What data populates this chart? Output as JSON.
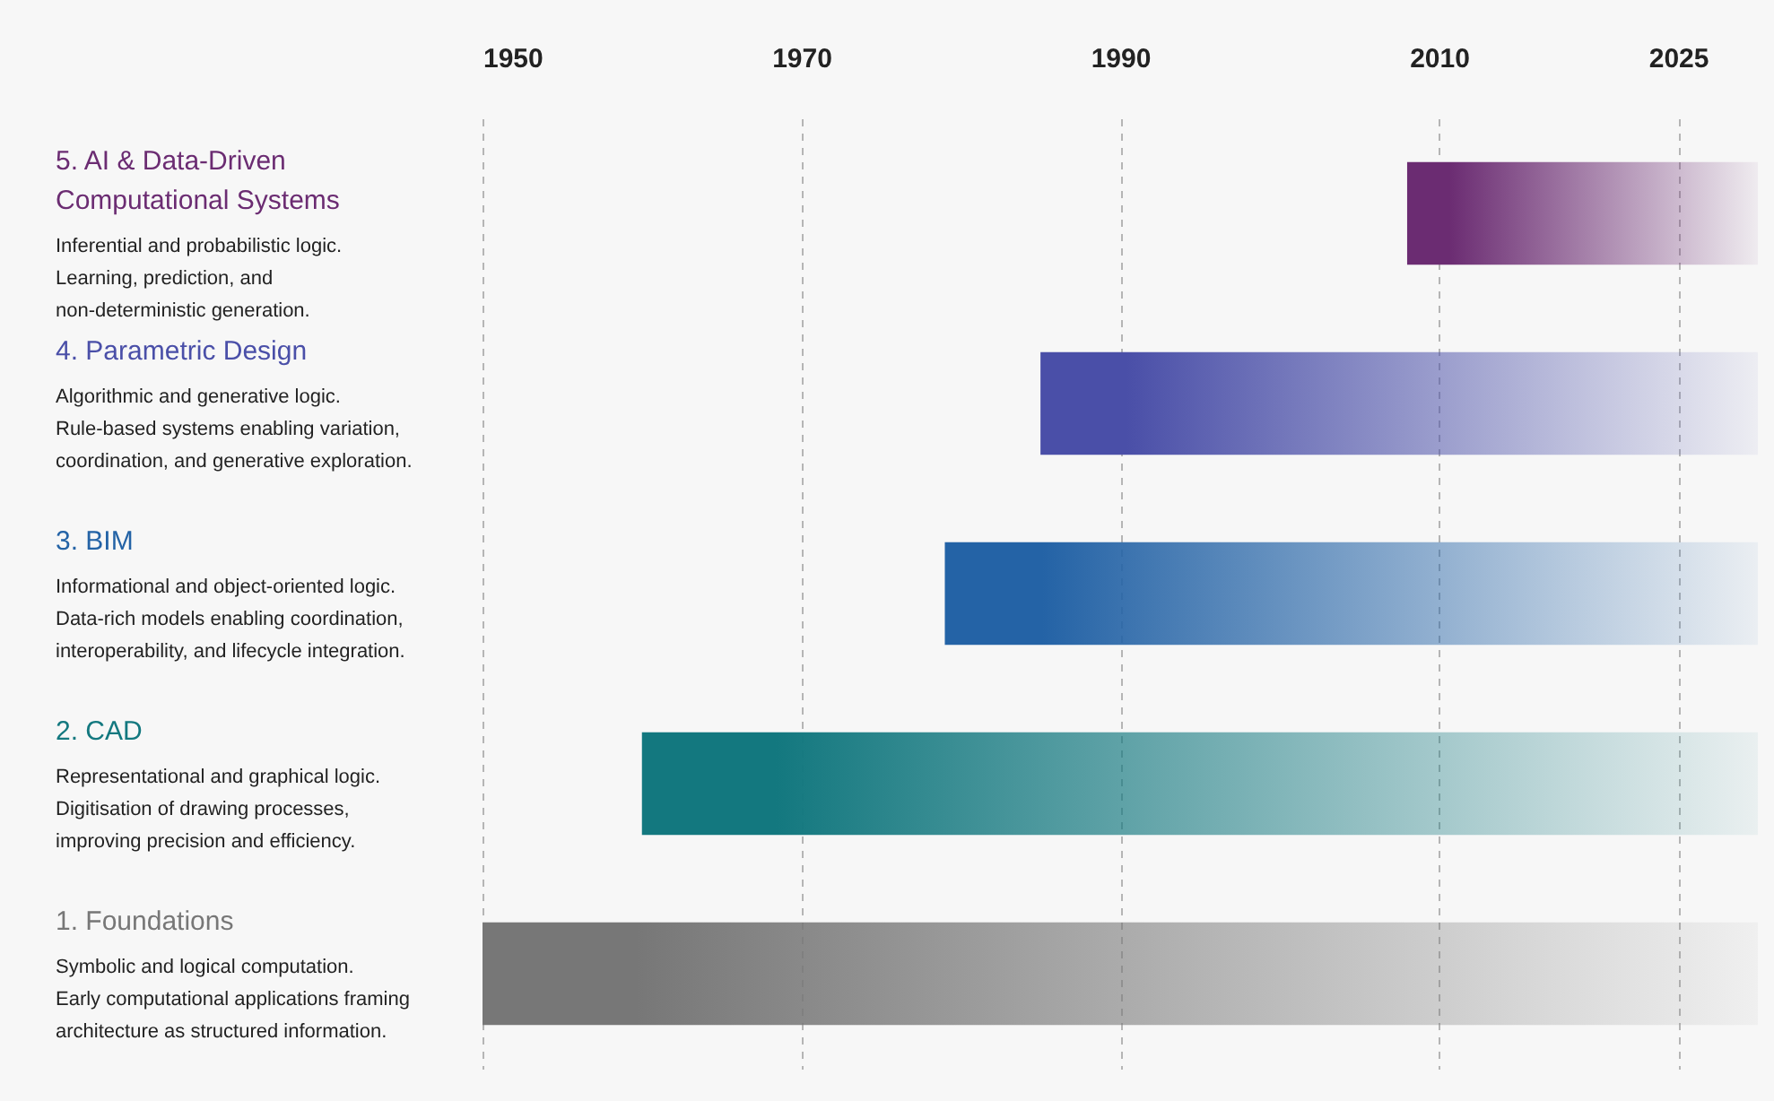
{
  "chart_data": {
    "type": "bar",
    "orientation": "horizontal",
    "categories": [
      "5. AI & Data-Driven\nComputational Systems",
      "4. Parametric Design",
      "3. BIM",
      "2. CAD",
      "1. Foundations"
    ],
    "base": [
      2008,
      1985,
      1979,
      1960,
      1950
    ],
    "values": [
      22,
      45,
      51,
      70,
      80
    ],
    "colors": [
      "#6b2c72",
      "#4a4fa8",
      "#2463a6",
      "#13787f",
      "#777777"
    ],
    "annotations": [
      "Inferential and probabilistic logic.\nLearning, prediction, and\nnon-deterministic generation.",
      "Algorithmic and generative logic.\nRule-based systems enabling variation,\ncoordination, and generative exploration.",
      "Informational and object-oriented logic.\nData-rich models enabling coordination,\ninteroperability, and lifecycle integration.",
      "Representational and graphical logic.\nDigitisation of drawing processes,\nimproving precision and efficiency.",
      "Symbolic and logical computation.\nEarly computational applications framing\narchitecture as structured information."
    ],
    "xlim": [
      1950,
      2030
    ],
    "xticks": [
      1950,
      1970,
      1990,
      2010,
      2025
    ],
    "grid": "x"
  }
}
